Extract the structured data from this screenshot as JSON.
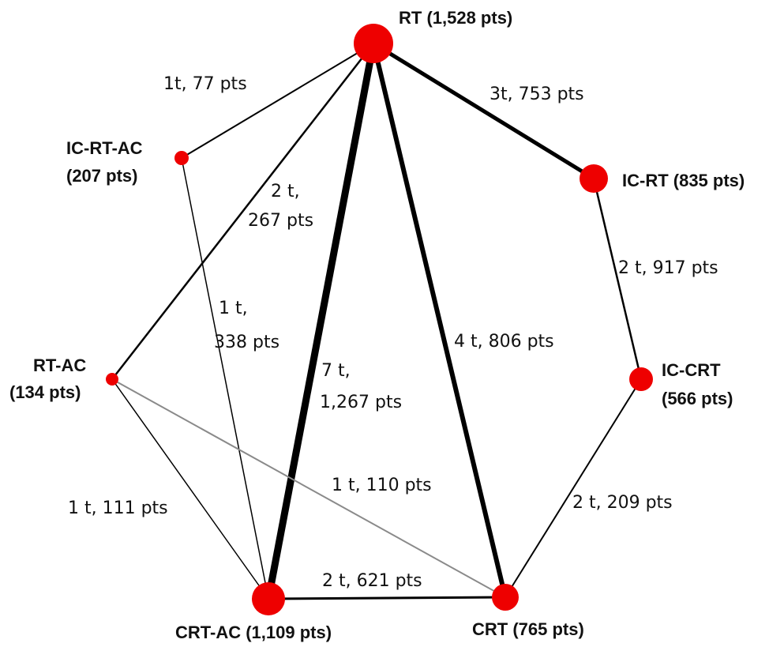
{
  "colors": {
    "node_fill": "#ee0000",
    "edge_primary": "#000000",
    "edge_secondary": "#8a8a8a",
    "text": "#111111"
  },
  "nodes": {
    "rt": {
      "label": "RT (1,528 pts)"
    },
    "ic_rt": {
      "label": "IC-RT (835 pts)"
    },
    "ic_crt": {
      "label_line1": "IC-CRT",
      "label_line2": "(566 pts)"
    },
    "crt": {
      "label": "CRT (765 pts)"
    },
    "crt_ac": {
      "label": "CRT-AC (1,109 pts)"
    },
    "rt_ac": {
      "label_line1": "RT-AC",
      "label_line2": "(134 pts)"
    },
    "ic_rt_ac": {
      "label_line1": "IC-RT-AC",
      "label_line2": "(207 pts)"
    }
  },
  "edges": {
    "rt_ic_rt_ac": {
      "label": "1t, 77 pts"
    },
    "rt_ic_rt": {
      "label": "3t, 753 pts"
    },
    "rt_rt_ac": {
      "label_line1": "2 t,",
      "label_line2": "267 pts"
    },
    "ic_rt_ac_crt_ac": {
      "label_line1": "1 t,",
      "label_line2": "338 pts"
    },
    "rt_crt_ac": {
      "label_line1": "7 t,",
      "label_line2": "1,267 pts"
    },
    "rt_crt": {
      "label": "4 t, 806 pts"
    },
    "ic_rt_ic_crt": {
      "label": "2 t, 917 pts"
    },
    "ic_crt_crt": {
      "label": "2 t, 209 pts"
    },
    "rt_ac_crt": {
      "label": "1 t, 110 pts"
    },
    "rt_ac_crt_ac": {
      "label": "1 t, 111 pts"
    },
    "crt_ac_crt": {
      "label": "2 t, 621 pts"
    }
  }
}
